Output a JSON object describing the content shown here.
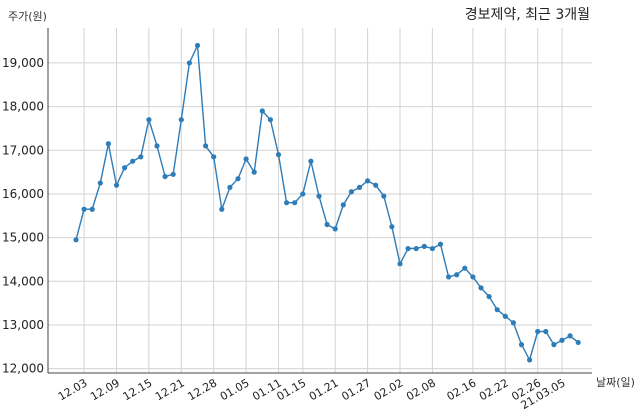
{
  "chart_data": {
    "type": "line",
    "title": "경보제약, 최근 3개월",
    "ylabel": "주가(원)",
    "xlabel": "날짜(일)",
    "ylim": [
      11900,
      19800
    ],
    "yticks": [
      12000,
      13000,
      14000,
      15000,
      16000,
      17000,
      18000,
      19000
    ],
    "ytick_labels": [
      "12,000",
      "13,000",
      "14,000",
      "15,000",
      "16,000",
      "17,000",
      "18,000",
      "19,000"
    ],
    "xticks": [
      "12.03",
      "12.09",
      "12.15",
      "12.21",
      "12.28",
      "01.05",
      "01.11",
      "01.15",
      "01.21",
      "01.27",
      "02.02",
      "02.08",
      "02.16",
      "02.22",
      "02.26",
      "21.03.05"
    ],
    "xtick_index": [
      1,
      5,
      9,
      13,
      17,
      21,
      25,
      28,
      32,
      36,
      40,
      44,
      49,
      53,
      57,
      60
    ],
    "grid": true,
    "color": "#2e7cb8",
    "series": [
      {
        "values": [
          14950,
          15650,
          15650,
          16250,
          17150,
          16200,
          16600,
          16750,
          16850,
          17700,
          17100,
          16400,
          16450,
          17700,
          19000,
          19400,
          17100,
          16850,
          15650,
          16150,
          16350,
          16800,
          16500,
          17900,
          17700,
          16900,
          15800,
          15800,
          16000,
          16750,
          15950,
          15300,
          15200,
          15750,
          16050,
          16150,
          16300,
          16200,
          15950,
          15250,
          14400,
          14750,
          14750,
          14800,
          14750,
          14850,
          14100,
          14150,
          14300,
          14100,
          13850,
          13650,
          13350,
          13200,
          13050,
          12550,
          12200,
          12850,
          12850,
          12550,
          12650,
          12750,
          12600
        ]
      }
    ]
  }
}
